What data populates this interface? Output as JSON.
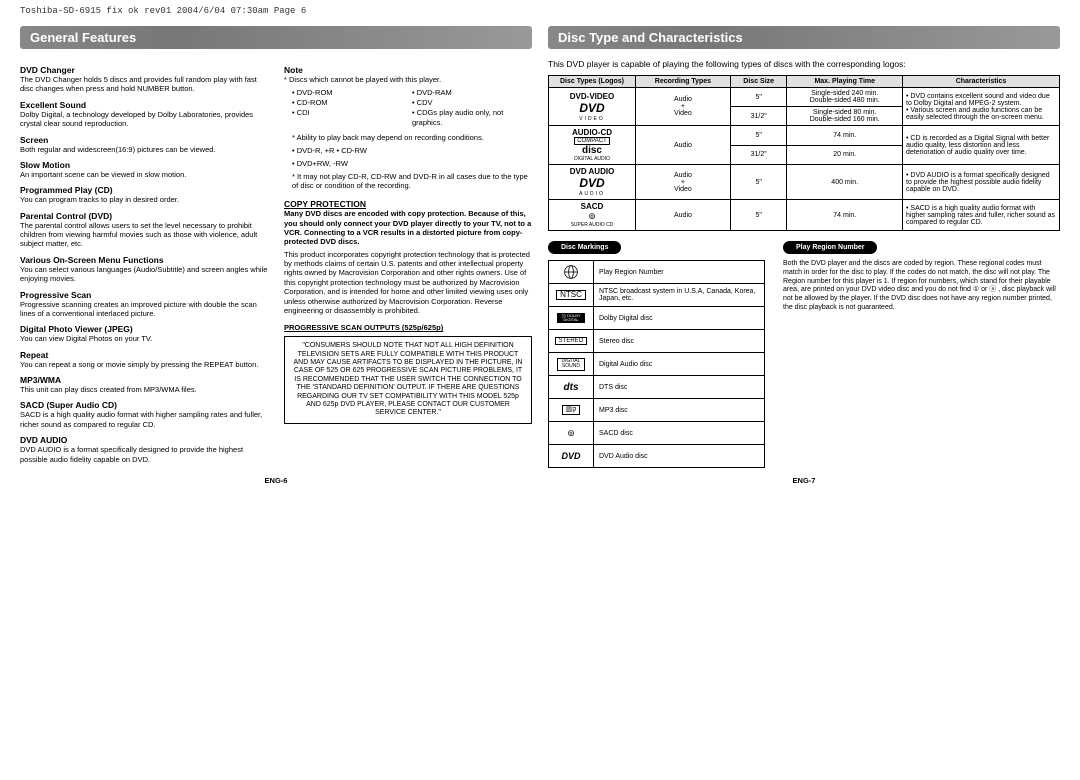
{
  "header": "Toshiba-SD-6915 fix ok rev01  2004/6/04  07:30am  Page 6",
  "left": {
    "sectionTitle": "General Features",
    "features": [
      {
        "title": "DVD Changer",
        "text": "The DVD Changer holds 5 discs and provides full random play with fast disc changes when press and hold NUMBER button."
      },
      {
        "title": "Excellent Sound",
        "text": "Dolby Digital, a technology developed by Dolby Laboratories, provides crystal clear sound reproduction."
      },
      {
        "title": "Screen",
        "text": "Both regular and widescreen(16:9) pictures can be viewed."
      },
      {
        "title": "Slow Motion",
        "text": "An important scene can be viewed in slow motion."
      },
      {
        "title": "Programmed Play (CD)",
        "text": "You can program tracks to play in desired order."
      },
      {
        "title": "Parental Control (DVD)",
        "text": "The parental control allows users to set the level necessary to prohibit children from viewing harmful movies such as those with violence, adult subject matter, etc."
      },
      {
        "title": "Various On-Screen Menu Functions",
        "text": "You can select various languages (Audio/Subtitle) and screen angles while enjoying movies."
      },
      {
        "title": "Progressive Scan",
        "text": "Progressive scanning creates an improved picture with double the scan lines of a conventional interlaced picture."
      },
      {
        "title": "Digital Photo Viewer (JPEG)",
        "text": "You can view Digital Photos on your TV."
      },
      {
        "title": "Repeat",
        "text": "You can repeat a song or movie simply by pressing the REPEAT button."
      },
      {
        "title": "MP3/WMA",
        "text": "This unit can play discs created from MP3/WMA files."
      },
      {
        "title": "SACD (Super Audio CD)",
        "text": "SACD is a high quality audio format with higher sampling rates and fuller, richer sound as compared to regular CD."
      },
      {
        "title": "DVD AUDIO",
        "text": "DVD AUDIO is a format specifically designed to provide the highest possible audio fidelity capable on DVD."
      }
    ],
    "noteTitle": "Note",
    "noteIntro": "* Discs which cannot be played with this player.",
    "noteDiscs": [
      "• DVD-ROM",
      "• DVD-RAM",
      "• CD-ROM",
      "• CDV",
      "• CDI",
      "• CDGs play audio only, not graphics."
    ],
    "noteBullets": [
      "* Ability to play back may depend on recording conditions.",
      "• DVD-R, +R        • CD-RW",
      "• DVD+RW, -RW",
      "* It may not play CD-R, CD-RW and DVD-R in all cases due to the type of disc or condition of the recording."
    ],
    "copyTitle": "COPY PROTECTION",
    "copyBold": "Many DVD discs are encoded with copy protection. Because of this, you should only connect your DVD player directly to your TV, not to a VCR. Connecting to a VCR results in a distorted picture from copy-protected DVD discs.",
    "copyText": "This product incorporates copyright protection technology that is protected by methods claims of certain U.S. patents and other intellectual property rights owned by Macrovision Corporation and other rights owners. Use of this copyright protection technology must be authorized by Macrovision Corporation, and is intended for home and other limited viewing uses only unless otherwise authorized by Macrovision Corporation. Reverse engineering or disassembly is prohibited.",
    "progTitle": "PROGRESSIVE SCAN OUTPUTS (525p/625p)",
    "progBox": "\"CONSUMERS SHOULD NOTE THAT NOT ALL HIGH DEFINITION TELEVISION SETS ARE FULLY COMPATIBLE WITH THIS PRODUCT AND MAY CAUSE ARTIFACTS TO BE DISPLAYED IN THE PICTURE, IN CASE OF 525 OR 625 PROGRESSIVE SCAN PICTURE PROBLEMS, IT IS RECOMMENDED THAT THE USER SWITCH THE CONNECTION TO THE 'STANDARD DEFINITION' OUTPUT. IF THERE ARE QUESTIONS REGARDING OUR TV SET COMPATIBILITY WITH THIS MODEL 525p AND 625p DVD PLAYER, PLEASE CONTACT OUR CUSTOMER SERVICE CENTER.\"",
    "pageNum": "ENG-6"
  },
  "right": {
    "sectionTitle": "Disc Type and Characteristics",
    "intro": "This DVD player is capable of playing the following types of discs with the corresponding logos:",
    "tableHeaders": [
      "Disc Types (Logos)",
      "Recording Types",
      "Disc Size",
      "Max. Playing Time",
      "Characteristics"
    ],
    "rows": {
      "dvdVideo": {
        "label": "DVD-VIDEO",
        "rec": "Audio\n+\nVideo",
        "sizes": [
          "5\"",
          "31/2\""
        ],
        "times": [
          "Single-sided 240 min.\nDouble-sided 480 min.",
          "Single-sided 80 min.\nDouble-sided 160 min."
        ],
        "char": "• DVD contains excellent sound and video due to Dolby Digital and MPEG-2 system.\n• Various screen and audio functions can be easily selected through the on-screen menu."
      },
      "audioCd": {
        "label": "AUDIO-CD",
        "rec": "Audio",
        "sizes": [
          "5\"",
          "31/2\""
        ],
        "times": [
          "74 min.",
          "20 min."
        ],
        "char": "• CD is recorded as a Digital Signal with better audio quality, less distortion and less deterioration of audio quality over time."
      },
      "dvdAudio": {
        "label": "DVD AUDIO",
        "rec": "Audio\n+\nVideo",
        "sizes": [
          "5\""
        ],
        "times": [
          "400 min."
        ],
        "char": "• DVD AUDIO is a format specifically designed to provide the highest possible audio fidelity capable on DVD."
      },
      "sacd": {
        "label": "SACD",
        "rec": "Audio",
        "sizes": [
          "5\""
        ],
        "times": [
          "74 min."
        ],
        "char": "• SACD is a high quality audio format with higher sampling rates and fuller, richer sound as compared to regular CD."
      }
    },
    "markingsTitle": "Disc Markings",
    "regionTitle": "Play Region Number",
    "markings": [
      {
        "icon": "globe",
        "text": "Play Region Number"
      },
      {
        "icon": "NTSC",
        "text": "NTSC broadcast system in U.S.A, Canada, Korea, Japan, etc."
      },
      {
        "icon": "DOLBY",
        "text": "Dolby Digital disc"
      },
      {
        "icon": "STEREO",
        "text": "Stereo disc"
      },
      {
        "icon": "DIGITAL SOUND",
        "text": "Digital Audio disc"
      },
      {
        "icon": "dts",
        "text": "DTS disc"
      },
      {
        "icon": "MP3",
        "text": "MP3 disc"
      },
      {
        "icon": "SACD",
        "text": "SACD disc"
      },
      {
        "icon": "DVD",
        "text": "DVD Audio disc"
      }
    ],
    "regionText": "Both the DVD player and the discs are coded by region. These regional codes must match in order for the disc to play. If the codes do not match, the disc will not play. The Region number for this player is 1. If region for numbers, which stand for their playable area, are printed on your DVD video disc and you do not find ① or ⓐ , disc playback will not be allowed by the player. If the DVD disc does not have any region number printed, the disc playback is not guaranteed.",
    "pageNum": "ENG-7"
  }
}
